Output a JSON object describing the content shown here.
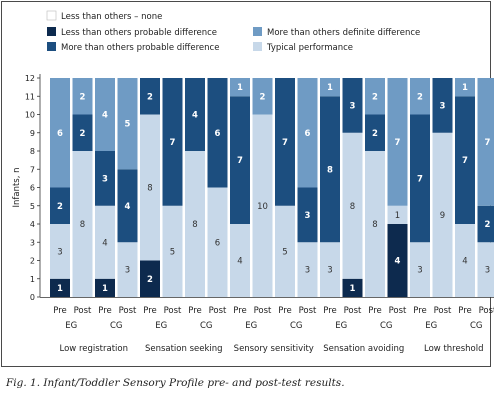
{
  "colors": {
    "none": "#ffffff",
    "less_probable": "#0d2a4e",
    "more_probable": "#1c4e7f",
    "more_definite": "#6f9bc4",
    "typical": "#c7d8e9"
  },
  "legend": {
    "items": [
      {
        "key": "none",
        "label": "Less than others – none"
      },
      {
        "key": "less_probable",
        "label": "Less than others probable difference"
      },
      {
        "key": "more_probable",
        "label": "More than others probable difference"
      },
      {
        "key": "more_definite",
        "label": "More than others definite difference"
      },
      {
        "key": "typical",
        "label": "Typical performance"
      }
    ]
  },
  "caption": "Fig. 1. Infant/Toddler Sensory Profile pre- and post-test results.",
  "chart_data": {
    "type": "bar",
    "stacked": true,
    "ylabel": "Infants, n",
    "ylim": [
      0,
      12
    ],
    "yticks": [
      "0",
      "1",
      "2",
      "3",
      "4",
      "5",
      "6",
      "7",
      "8",
      "9",
      "10",
      "11",
      "12"
    ],
    "series_order": [
      "less_probable",
      "typical",
      "more_probable",
      "more_definite"
    ],
    "groups": [
      {
        "label": "Low registration",
        "subgroups": [
          {
            "label": "EG",
            "bars": [
              {
                "label": "Pre",
                "values": {
                  "less_probable": 1,
                  "typical": 3,
                  "more_probable": 2,
                  "more_definite": 6
                }
              },
              {
                "label": "Post",
                "values": {
                  "less_probable": 0,
                  "typical": 8,
                  "more_probable": 2,
                  "more_definite": 2
                }
              }
            ]
          },
          {
            "label": "CG",
            "bars": [
              {
                "label": "Pre",
                "values": {
                  "less_probable": 1,
                  "typical": 4,
                  "more_probable": 3,
                  "more_definite": 4
                }
              },
              {
                "label": "Post",
                "values": {
                  "less_probable": 0,
                  "typical": 3,
                  "more_probable": 4,
                  "more_definite": 5
                }
              }
            ]
          }
        ]
      },
      {
        "label": "Sensation seeking",
        "subgroups": [
          {
            "label": "EG",
            "bars": [
              {
                "label": "Pre",
                "values": {
                  "less_probable": 2,
                  "typical": 8,
                  "more_probable": 2,
                  "more_definite": 0
                }
              },
              {
                "label": "Post",
                "values": {
                  "less_probable": 0,
                  "typical": 5,
                  "more_probable": 7,
                  "more_definite": 0
                }
              }
            ]
          },
          {
            "label": "CG",
            "bars": [
              {
                "label": "Pre",
                "values": {
                  "less_probable": 0,
                  "typical": 8,
                  "more_probable": 4,
                  "more_definite": 0
                }
              },
              {
                "label": "Post",
                "values": {
                  "less_probable": 0,
                  "typical": 6,
                  "more_probable": 6,
                  "more_definite": 0
                }
              }
            ]
          }
        ]
      },
      {
        "label": "Sensory sensitivity",
        "subgroups": [
          {
            "label": "EG",
            "bars": [
              {
                "label": "Pre",
                "values": {
                  "less_probable": 0,
                  "typical": 4,
                  "more_probable": 7,
                  "more_definite": 1
                }
              },
              {
                "label": "Post",
                "values": {
                  "less_probable": 0,
                  "typical": 10,
                  "more_probable": 0,
                  "more_definite": 2
                }
              }
            ]
          },
          {
            "label": "CG",
            "bars": [
              {
                "label": "Pre",
                "values": {
                  "less_probable": 0,
                  "typical": 5,
                  "more_probable": 7,
                  "more_definite": 0
                }
              },
              {
                "label": "Post",
                "values": {
                  "less_probable": 0,
                  "typical": 3,
                  "more_probable": 3,
                  "more_definite": 6
                }
              }
            ]
          }
        ]
      },
      {
        "label": "Sensation avoiding",
        "subgroups": [
          {
            "label": "EG",
            "bars": [
              {
                "label": "Pre",
                "values": {
                  "less_probable": 0,
                  "typical": 3,
                  "more_probable": 8,
                  "more_definite": 1
                }
              },
              {
                "label": "Post",
                "values": {
                  "less_probable": 1,
                  "typical": 8,
                  "more_probable": 3,
                  "more_definite": 0
                }
              }
            ]
          },
          {
            "label": "CG",
            "bars": [
              {
                "label": "Pre",
                "values": {
                  "less_probable": 0,
                  "typical": 8,
                  "more_probable": 2,
                  "more_definite": 2
                }
              },
              {
                "label": "Post",
                "values": {
                  "less_probable": 4,
                  "typical": 1,
                  "more_probable": 0,
                  "more_definite": 7
                }
              }
            ]
          }
        ]
      },
      {
        "label": "Low threshold",
        "subgroups": [
          {
            "label": "EG",
            "bars": [
              {
                "label": "Pre",
                "values": {
                  "less_probable": 0,
                  "typical": 3,
                  "more_probable": 7,
                  "more_definite": 2
                }
              },
              {
                "label": "Post",
                "values": {
                  "less_probable": 0,
                  "typical": 9,
                  "more_probable": 3,
                  "more_definite": 0
                }
              }
            ]
          },
          {
            "label": "CG",
            "bars": [
              {
                "label": "Pre",
                "values": {
                  "less_probable": 0,
                  "typical": 4,
                  "more_probable": 7,
                  "more_definite": 1
                }
              },
              {
                "label": "Post",
                "values": {
                  "less_probable": 0,
                  "typical": 3,
                  "more_probable": 2,
                  "more_definite": 7
                }
              }
            ]
          }
        ]
      }
    ]
  }
}
